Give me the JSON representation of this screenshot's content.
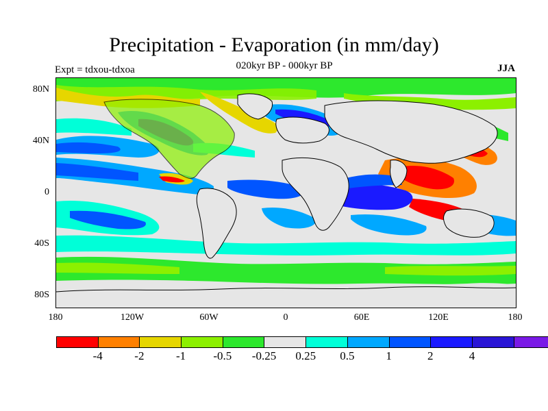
{
  "title": "Precipitation - Evaporation (in mm/day)",
  "subtitle": "020kyr BP - 000kyr BP",
  "expt_label": "Expt = tdxou-tdxoa",
  "season": "JJA",
  "lat_labels": [
    "80N",
    "40N",
    "0",
    "40S",
    "80S"
  ],
  "lon_labels": [
    "180",
    "120W",
    "60W",
    "0",
    "60E",
    "120E",
    "180"
  ],
  "colorbar": {
    "colors": [
      "#ff0000",
      "#ff8000",
      "#e6d600",
      "#8cf000",
      "#2de82d",
      "#e6e6e6",
      "#00ffd8",
      "#00a8ff",
      "#0055ff",
      "#1a1aff",
      "#2a16d6",
      "#7a1ae6"
    ],
    "labels": [
      "-4",
      "-2",
      "-1",
      "-0.5",
      "-0.25",
      "0.25",
      "0.5",
      "1",
      "2",
      "4"
    ]
  }
}
